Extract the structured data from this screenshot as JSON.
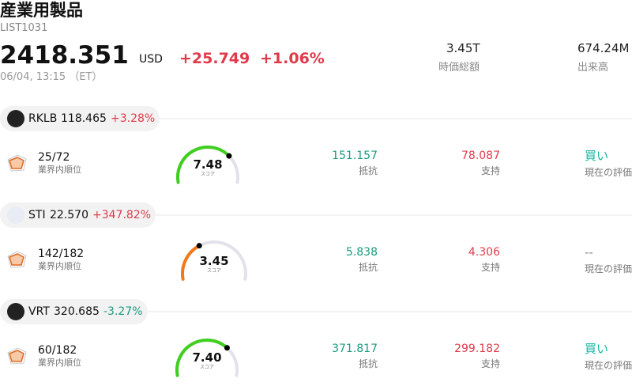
{
  "header": {
    "title": "産業用製品",
    "code": "LIST1031",
    "price": "2418.351",
    "currency": "USD",
    "change": "+25.749",
    "change_pct": "+1.06%",
    "datetime": "06/04, 13:15 （ET）",
    "stats": [
      {
        "value": "3.45T",
        "label": "時価総額"
      },
      {
        "value": "674.24M",
        "label": "出来高"
      }
    ]
  },
  "stocks": [
    {
      "ticker": "RKLB",
      "price": "118.465",
      "change": "+3.28%",
      "change_color": "#e03a4a",
      "rank": "25/72",
      "rank_label": "業界内順位",
      "score": "7.48",
      "score_label": "スコア",
      "score_color": "#3fcf1f",
      "resistance": "151.157",
      "resistance_label": "抵抗",
      "support": "78.087",
      "support_label": "支持",
      "rating": "買い",
      "rating_color": "#17b3a3",
      "rating_label": "現在の評価"
    },
    {
      "ticker": "STI",
      "price": "22.570",
      "change": "+347.82%",
      "change_color": "#e03a4a",
      "rank": "142/182",
      "rank_label": "業界内順位",
      "score": "3.45",
      "score_label": "スコア",
      "score_color": "#f07a1a",
      "resistance": "5.838",
      "resistance_label": "抵抗",
      "support": "4.306",
      "support_label": "支持",
      "rating": "--",
      "rating_color": "#888888",
      "rating_label": "現在の評価"
    },
    {
      "ticker": "VRT",
      "price": "320.685",
      "change": "-3.27%",
      "change_color": "#1a9c80",
      "rank": "60/182",
      "rank_label": "業界内順位",
      "score": "7.40",
      "score_label": "スコア",
      "score_color": "#3fcf1f",
      "resistance": "371.817",
      "resistance_label": "抵抗",
      "support": "299.182",
      "support_label": "支持",
      "rating": "買い",
      "rating_color": "#17b3a3",
      "rating_label": "現在の評価"
    }
  ]
}
